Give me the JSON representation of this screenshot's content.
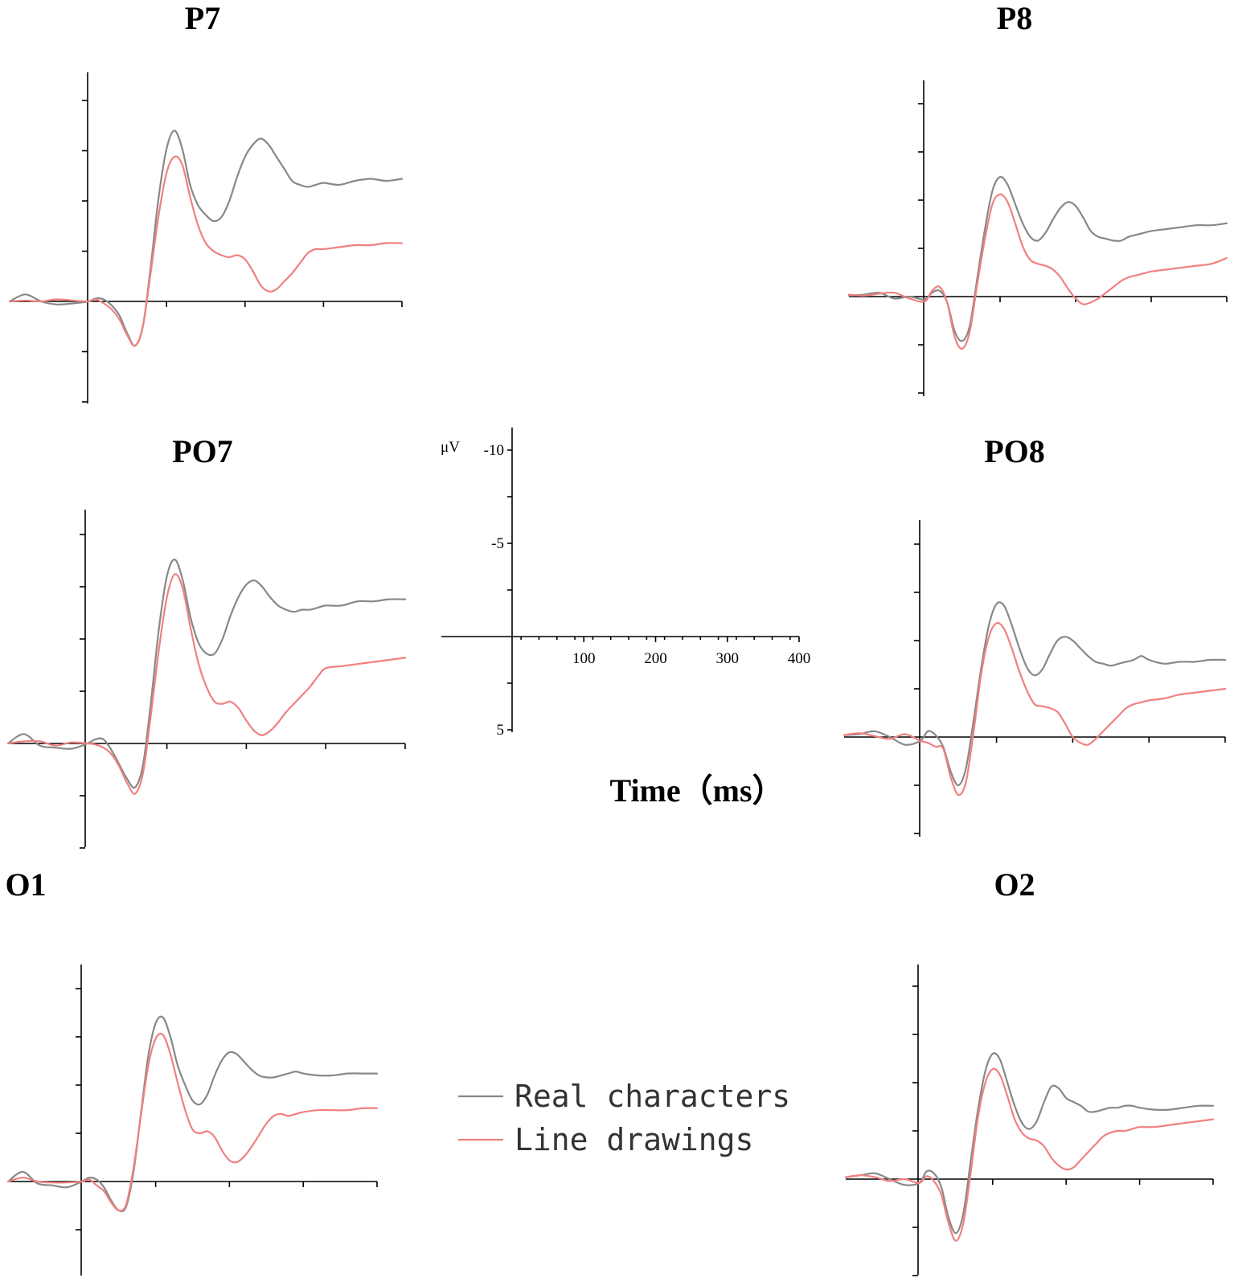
{
  "chart_data": {
    "type": "line",
    "xlabel": "Time（ms）",
    "ylabel": "μV",
    "xticks": [
      100,
      200,
      300,
      400
    ],
    "yticks": [
      -10,
      -5,
      5
    ],
    "xlim": [
      -100,
      400
    ],
    "ylim": [
      5,
      -10
    ],
    "y_axis_inverted": true,
    "legend": {
      "position": "center-bottom",
      "entries": [
        {
          "name": "Real characters",
          "color": "#888888"
        },
        {
          "name": "Line drawings",
          "color": "#f08080"
        }
      ]
    },
    "x": [
      -100,
      -80,
      -60,
      -40,
      -20,
      0,
      10,
      20,
      30,
      40,
      50,
      60,
      70,
      80,
      90,
      100,
      110,
      120,
      130,
      140,
      150,
      160,
      170,
      180,
      190,
      200,
      210,
      220,
      230,
      240,
      250,
      260,
      270,
      280,
      290,
      300,
      320,
      340,
      360,
      380,
      400
    ],
    "panels": [
      {
        "title": "P7",
        "series": [
          {
            "name": "Real characters",
            "values": [
              0,
              -0.35,
              0,
              0.15,
              0.1,
              0,
              -0.15,
              -0.1,
              0.2,
              0.7,
              1.6,
              2.2,
              1.2,
              -1.8,
              -5.2,
              -7.6,
              -8.5,
              -7.6,
              -5.8,
              -4.8,
              -4.3,
              -4.0,
              -4.2,
              -5.0,
              -6.2,
              -7.2,
              -7.8,
              -8.1,
              -7.8,
              -7.2,
              -6.6,
              -6.0,
              -5.8,
              -5.7,
              -5.8,
              -5.9,
              -5.8,
              -6.0,
              -6.1,
              -6.0,
              -6.1
            ]
          },
          {
            "name": "Line drawings",
            "values": [
              0,
              -0.05,
              0,
              -0.1,
              -0.05,
              0,
              -0.1,
              0.1,
              0.4,
              0.9,
              1.7,
              2.2,
              1.2,
              -1.5,
              -4.3,
              -6.4,
              -7.2,
              -6.8,
              -5.2,
              -3.8,
              -2.9,
              -2.5,
              -2.3,
              -2.2,
              -2.3,
              -2.1,
              -1.5,
              -0.8,
              -0.5,
              -0.6,
              -1.0,
              -1.4,
              -1.9,
              -2.4,
              -2.6,
              -2.6,
              -2.7,
              -2.8,
              -2.8,
              -2.9,
              -2.9
            ]
          }
        ]
      },
      {
        "title": "P8",
        "series": [
          {
            "name": "Real characters",
            "values": [
              -0.05,
              -0.1,
              -0.2,
              0.1,
              0,
              0.15,
              -0.2,
              -0.3,
              0.3,
              1.8,
              2.3,
              1.5,
              -1.0,
              -3.5,
              -5.5,
              -6.2,
              -5.8,
              -4.8,
              -3.8,
              -3.1,
              -2.9,
              -3.3,
              -4.0,
              -4.6,
              -4.9,
              -4.7,
              -4.1,
              -3.4,
              -3.1,
              -3.0,
              -2.9,
              -2.9,
              -3.1,
              -3.2,
              -3.3,
              -3.4,
              -3.5,
              -3.6,
              -3.7,
              -3.7,
              -3.8
            ]
          },
          {
            "name": "Line drawings",
            "values": [
              -0.1,
              -0.05,
              -0.15,
              -0.2,
              0.1,
              0.25,
              -0.3,
              -0.5,
              0.3,
              2.1,
              2.7,
              1.8,
              -0.7,
              -3.0,
              -4.8,
              -5.3,
              -4.9,
              -3.8,
              -2.6,
              -1.9,
              -1.7,
              -1.6,
              -1.4,
              -1.0,
              -0.4,
              0.1,
              0.4,
              0.3,
              0.1,
              -0.2,
              -0.5,
              -0.8,
              -1.0,
              -1.1,
              -1.2,
              -1.3,
              -1.4,
              -1.5,
              -1.6,
              -1.7,
              -2.0
            ]
          }
        ]
      },
      {
        "title": "PO7",
        "series": [
          {
            "name": "Real characters",
            "values": [
              0,
              -0.45,
              0.1,
              0.2,
              0.25,
              0,
              -0.2,
              -0.2,
              0.3,
              1.0,
              1.7,
              2.1,
              1.0,
              -2.0,
              -5.5,
              -8.0,
              -8.8,
              -7.8,
              -6.0,
              -4.8,
              -4.3,
              -4.3,
              -5.0,
              -6.1,
              -7.0,
              -7.6,
              -7.8,
              -7.5,
              -7.0,
              -6.6,
              -6.4,
              -6.3,
              -6.4,
              -6.4,
              -6.5,
              -6.6,
              -6.6,
              -6.8,
              -6.8,
              -6.9,
              -6.9
            ]
          },
          {
            "name": "Line drawings",
            "values": [
              0,
              -0.1,
              -0.1,
              0.1,
              -0.05,
              0,
              0.05,
              0.2,
              0.5,
              1.1,
              1.9,
              2.4,
              1.4,
              -1.4,
              -4.5,
              -7.0,
              -8.1,
              -7.4,
              -5.5,
              -3.8,
              -2.7,
              -2.0,
              -1.9,
              -2.0,
              -1.7,
              -1.1,
              -0.6,
              -0.4,
              -0.6,
              -1.0,
              -1.5,
              -1.9,
              -2.3,
              -2.7,
              -3.2,
              -3.6,
              -3.7,
              -3.8,
              -3.9,
              -4.0,
              -4.1
            ]
          }
        ]
      },
      {
        "title": "PO8",
        "series": [
          {
            "name": "Real characters",
            "values": [
              -0.1,
              -0.15,
              -0.3,
              0,
              0.4,
              0.2,
              -0.3,
              -0.1,
              0.5,
              1.8,
              2.5,
              1.6,
              -0.9,
              -3.6,
              -5.8,
              -6.9,
              -6.8,
              -5.8,
              -4.6,
              -3.6,
              -3.2,
              -3.5,
              -4.3,
              -5.0,
              -5.2,
              -5.0,
              -4.6,
              -4.2,
              -3.9,
              -3.8,
              -3.7,
              -3.8,
              -3.9,
              -4.0,
              -4.2,
              -4.0,
              -3.8,
              -3.9,
              -3.9,
              -4.0,
              -4.0
            ]
          },
          {
            "name": "Line drawings",
            "values": [
              -0.1,
              -0.2,
              -0.05,
              0.1,
              -0.15,
              0.2,
              0.3,
              0.5,
              0.6,
              2.1,
              3.0,
              2.3,
              -0.3,
              -3.3,
              -5.2,
              -5.9,
              -5.6,
              -4.6,
              -3.4,
              -2.4,
              -1.7,
              -1.6,
              -1.5,
              -1.3,
              -0.7,
              0,
              0.3,
              0.4,
              0.1,
              -0.3,
              -0.7,
              -1.1,
              -1.5,
              -1.7,
              -1.8,
              -1.9,
              -2.0,
              -2.2,
              -2.3,
              -2.4,
              -2.5
            ]
          }
        ]
      },
      {
        "title": "O1",
        "series": [
          {
            "name": "Real characters",
            "values": [
              0,
              -0.5,
              0.1,
              0.2,
              0.3,
              0,
              -0.2,
              -0.1,
              0.3,
              1.0,
              1.5,
              1.3,
              -0.5,
              -3.5,
              -6.5,
              -8.2,
              -8.5,
              -7.5,
              -6.0,
              -5.0,
              -4.2,
              -4.0,
              -4.5,
              -5.5,
              -6.3,
              -6.7,
              -6.6,
              -6.2,
              -5.8,
              -5.5,
              -5.4,
              -5.4,
              -5.5,
              -5.6,
              -5.7,
              -5.6,
              -5.5,
              -5.5,
              -5.6,
              -5.6,
              -5.6
            ]
          },
          {
            "name": "Line drawings",
            "values": [
              0,
              -0.2,
              0,
              0.05,
              0.05,
              0,
              -0.1,
              0.2,
              0.5,
              1.1,
              1.5,
              1.2,
              -0.7,
              -3.4,
              -6.0,
              -7.4,
              -7.6,
              -6.6,
              -5.1,
              -3.7,
              -2.7,
              -2.5,
              -2.6,
              -2.3,
              -1.6,
              -1.1,
              -1.0,
              -1.3,
              -1.8,
              -2.4,
              -3.0,
              -3.4,
              -3.5,
              -3.4,
              -3.5,
              -3.6,
              -3.7,
              -3.7,
              -3.7,
              -3.8,
              -3.8
            ]
          }
        ]
      },
      {
        "title": "O2",
        "series": [
          {
            "name": "Real characters",
            "values": [
              -0.1,
              -0.2,
              -0.3,
              0,
              0.3,
              0.2,
              -0.4,
              -0.3,
              0.4,
              2.0,
              2.8,
              1.8,
              -0.9,
              -3.6,
              -5.6,
              -6.5,
              -6.2,
              -5.0,
              -3.8,
              -2.9,
              -2.6,
              -3.0,
              -4.0,
              -4.8,
              -4.7,
              -4.2,
              -4.0,
              -3.8,
              -3.5,
              -3.5,
              -3.6,
              -3.7,
              -3.7,
              -3.8,
              -3.8,
              -3.7,
              -3.6,
              -3.6,
              -3.7,
              -3.8,
              -3.8
            ]
          },
          {
            "name": "Line drawings",
            "values": [
              -0.1,
              -0.2,
              -0.1,
              0.1,
              0,
              0.2,
              -0.15,
              0.1,
              0.8,
              2.3,
              3.2,
              2.3,
              -0.3,
              -3.2,
              -5.0,
              -5.7,
              -5.4,
              -4.3,
              -3.1,
              -2.4,
              -2.1,
              -2.0,
              -1.7,
              -1.1,
              -0.7,
              -0.5,
              -0.6,
              -1.0,
              -1.4,
              -1.8,
              -2.2,
              -2.4,
              -2.5,
              -2.5,
              -2.6,
              -2.7,
              -2.7,
              -2.8,
              -2.9,
              -3.0,
              -3.1
            ]
          }
        ]
      }
    ]
  }
}
